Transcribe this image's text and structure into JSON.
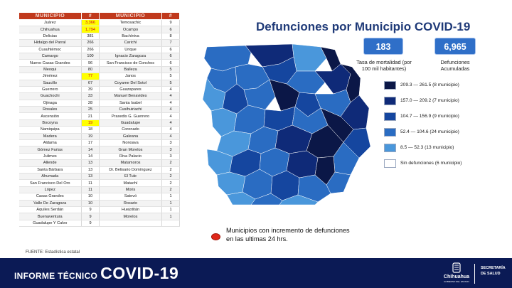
{
  "table": {
    "headers": [
      "MUNICIPIO",
      "#",
      "MUNICIPIO",
      "#"
    ],
    "rows": [
      [
        "Juárez",
        "3,366",
        "Temosachic",
        "9"
      ],
      [
        "Chihuahua",
        "1,794",
        "Ocampo",
        "6"
      ],
      [
        "Delicias",
        "381",
        "Bachíniva",
        "8"
      ],
      [
        "Hidalgo del Parral",
        "266",
        "Carichí",
        "7"
      ],
      [
        "Cuauhtémoc",
        "266",
        "Urique",
        "6"
      ],
      [
        "Camargo",
        "100",
        "Ignacio Zaragoza",
        "6"
      ],
      [
        "Nuevo Casas Grandes",
        "96",
        "San Francisco de Conchos",
        "6"
      ],
      [
        "Meoqui",
        "80",
        "Balleza",
        "5"
      ],
      [
        "Jiménez",
        "77",
        "Janos",
        "5"
      ],
      [
        "Saucillo",
        "67",
        "Coyame Del Sotol",
        "5"
      ],
      [
        "Guerrero",
        "39",
        "Guazapares",
        "4"
      ],
      [
        "Guachochi",
        "33",
        "Manuel Benavides",
        "4"
      ],
      [
        "Ojinaga",
        "28",
        "Santa Isabel",
        "4"
      ],
      [
        "Rosales",
        "25",
        "Cusihuiriachi",
        "4"
      ],
      [
        "Ascensión",
        "21",
        "Praxedis G. Guerrero",
        "4"
      ],
      [
        "Bocoyna",
        "19",
        "Guadalupe",
        "4"
      ],
      [
        "Namiquipa",
        "18",
        "Coronado",
        "4"
      ],
      [
        "Madera",
        "19",
        "Galeana",
        "4"
      ],
      [
        "Aldama",
        "17",
        "Nonoava",
        "3"
      ],
      [
        "Gómez Farías",
        "14",
        "Gran Morelos",
        "3"
      ],
      [
        "Julimes",
        "14",
        "Riva Palacio",
        "3"
      ],
      [
        "Allende",
        "13",
        "Matamoros",
        "2"
      ],
      [
        "Santa Bárbara",
        "13",
        "Dr. Belisario Domínguez",
        "2"
      ],
      [
        "Ahumada",
        "13",
        "El Tule",
        "2"
      ],
      [
        "San Francisco Del Oro",
        "11",
        "Matachí",
        "2"
      ],
      [
        "López",
        "11",
        "Moris",
        "2"
      ],
      [
        "Casas Grandes",
        "10",
        "Satevó",
        "1"
      ],
      [
        "Valle De Zaragoza",
        "10",
        "Rosario",
        "1"
      ],
      [
        "Aquiles Serdán",
        "9",
        "Huejotitán",
        "1"
      ],
      [
        "Buenaventura",
        "9",
        "Morelos",
        "1"
      ],
      [
        "Guadalupe Y Calvo",
        "9",
        "",
        ""
      ]
    ],
    "highlighted_rows": [
      0,
      1,
      8,
      15
    ]
  },
  "source": "FUENTE: Estadística estatal",
  "title": "Defunciones por Municipio COVID-19",
  "stats": {
    "rate_value": "183",
    "rate_label": "Tasa de mortalidad (por 100 mil habitantes)",
    "deaths_value": "6,965",
    "deaths_label": "Defunciones Acumuladas"
  },
  "legend": [
    {
      "label": "209.3 — 261.5 (8 municipio)",
      "color": "#0b1747"
    },
    {
      "label": "157.0 — 209.2 (7 municipio)",
      "color": "#0f2a78"
    },
    {
      "label": "104.7 — 156.9 (9 municipio)",
      "color": "#15469f"
    },
    {
      "label": "52.4 — 104.6 (24 municipio)",
      "color": "#2a6cc2"
    },
    {
      "label": "8.5 — 52.3 (13 municipio)",
      "color": "#4a97db"
    },
    {
      "label": "Sin defunciones (6 municipio)",
      "color": "#ffffff"
    }
  ],
  "note": "Municipios con incremento de defunciones en las ultimas 24 hrs.",
  "note_color": "#e0281a",
  "footer": {
    "title_prefix": "INFORME TÉCNICO",
    "title_main": "COVID-19",
    "logo_text": "Chihuahua",
    "logo_sub": "GOBIERNO DEL ESTADO",
    "sec_line1": "SECRETARÍA",
    "sec_line2": "DE SALUD",
    "bg_color": "#0b1a55"
  },
  "chart_data": {
    "type": "table",
    "title": "Defunciones por Municipio COVID-19",
    "categories": [
      "Juárez",
      "Chihuahua",
      "Delicias",
      "Hidalgo del Parral",
      "Cuauhtémoc",
      "Camargo",
      "Nuevo Casas Grandes",
      "Meoqui",
      "Jiménez",
      "Saucillo",
      "Guerrero",
      "Guachochi",
      "Ojinaga",
      "Rosales",
      "Ascensión",
      "Bocoyna",
      "Namiquipa",
      "Madera",
      "Aldama",
      "Gómez Farías",
      "Julimes",
      "Allende",
      "Santa Bárbara",
      "Ahumada",
      "San Francisco Del Oro",
      "López",
      "Casas Grandes",
      "Valle De Zaragoza",
      "Aquiles Serdán",
      "Buenaventura",
      "Guadalupe Y Calvo",
      "Temosachic",
      "Ocampo",
      "Bachíniva",
      "Carichí",
      "Urique",
      "Ignacio Zaragoza",
      "San Francisco de Conchos",
      "Balleza",
      "Janos",
      "Coyame Del Sotol",
      "Guazapares",
      "Manuel Benavides",
      "Santa Isabel",
      "Cusihuiriachi",
      "Praxedis G. Guerrero",
      "Guadalupe",
      "Coronado",
      "Galeana",
      "Nonoava",
      "Gran Morelos",
      "Riva Palacio",
      "Matamoros",
      "Dr. Belisario Domínguez",
      "El Tule",
      "Matachí",
      "Moris",
      "Satevó",
      "Rosario",
      "Huejotitán",
      "Morelos"
    ],
    "values": [
      3366,
      1794,
      381,
      266,
      266,
      100,
      96,
      80,
      77,
      67,
      39,
      33,
      28,
      25,
      21,
      19,
      18,
      19,
      17,
      14,
      14,
      13,
      13,
      13,
      11,
      11,
      10,
      10,
      9,
      9,
      9,
      9,
      6,
      8,
      7,
      6,
      6,
      6,
      5,
      5,
      5,
      4,
      4,
      4,
      4,
      4,
      4,
      4,
      4,
      3,
      3,
      3,
      2,
      2,
      2,
      2,
      2,
      1,
      1,
      1,
      1
    ],
    "legend_classes": [
      "209.3 — 261.5",
      "157.0 — 209.2",
      "104.7 — 156.9",
      "52.4 — 104.6",
      "8.5 — 52.3",
      "Sin defunciones"
    ]
  }
}
